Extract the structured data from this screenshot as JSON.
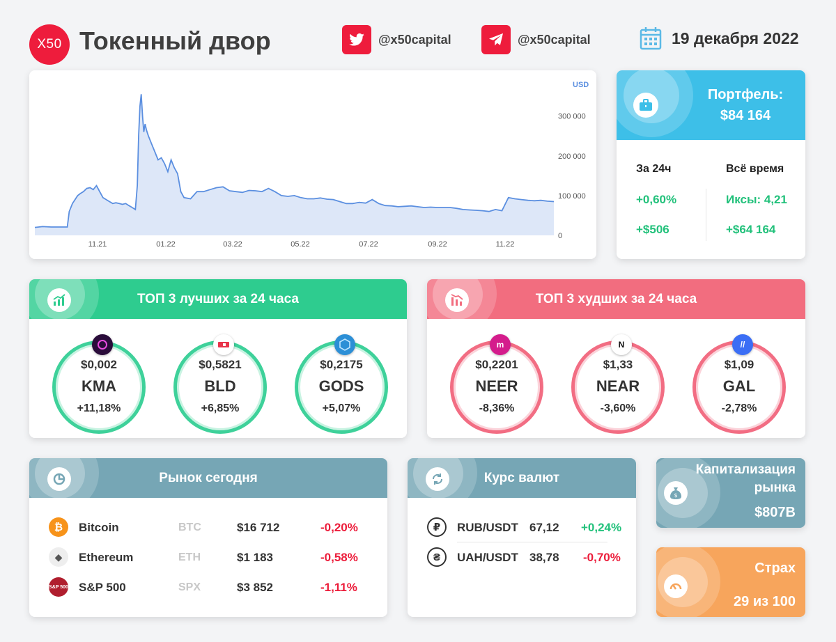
{
  "header": {
    "logo_text": "X50",
    "title": "Токенный двор",
    "twitter_handle": "@x50capital",
    "telegram_handle": "@x50capital",
    "date": "19 декабря 2022"
  },
  "chart_data": {
    "type": "area",
    "currency_label": "USD",
    "x_ticks": [
      "11.21",
      "01.22",
      "03.22",
      "05.22",
      "07.22",
      "09.22",
      "11.22"
    ],
    "y_ticks": [
      "300 000",
      "200 000",
      "100 000",
      "0"
    ],
    "ylim": [
      0,
      380000
    ],
    "x": [
      0,
      12,
      25,
      40,
      50,
      53,
      58,
      62,
      66,
      70,
      75,
      80,
      85,
      90,
      95,
      100,
      105,
      110,
      115,
      120,
      125,
      130,
      135,
      140,
      145,
      150,
      155,
      158,
      160,
      162,
      164,
      166,
      168,
      170,
      172,
      175,
      180,
      185,
      190,
      195,
      200,
      205,
      210,
      215,
      220,
      225,
      230,
      240,
      250,
      260,
      270,
      280,
      290,
      300,
      310,
      320,
      330,
      340,
      350,
      360,
      370,
      380,
      390,
      400,
      410,
      420,
      430,
      440,
      450,
      460,
      470,
      480,
      490,
      500,
      510,
      520,
      530,
      540,
      550,
      560,
      570,
      580,
      590,
      600,
      610,
      620,
      630,
      640,
      650,
      660,
      670,
      680,
      690,
      700,
      710,
      720,
      730,
      740,
      750,
      760,
      770,
      780,
      790,
      800
    ],
    "y": [
      20000,
      22000,
      21000,
      21000,
      21000,
      60000,
      80000,
      90000,
      100000,
      105000,
      110000,
      118000,
      120000,
      115000,
      125000,
      110000,
      95000,
      90000,
      85000,
      80000,
      82000,
      80000,
      78000,
      80000,
      75000,
      70000,
      65000,
      125000,
      250000,
      325000,
      355000,
      300000,
      260000,
      280000,
      265000,
      250000,
      230000,
      210000,
      190000,
      195000,
      180000,
      160000,
      190000,
      170000,
      155000,
      110000,
      95000,
      92000,
      110000,
      110000,
      115000,
      120000,
      122000,
      112000,
      110000,
      108000,
      113000,
      112000,
      110000,
      118000,
      110000,
      100000,
      98000,
      100000,
      95000,
      92000,
      92000,
      94000,
      91000,
      90000,
      85000,
      80000,
      80000,
      83000,
      81000,
      90000,
      80000,
      75000,
      74000,
      72000,
      73000,
      74000,
      72000,
      70000,
      71000,
      70000,
      70000,
      70000,
      68000,
      65000,
      64000,
      63000,
      62000,
      60000,
      65000,
      62000,
      95000,
      92000,
      90000,
      88000,
      87000,
      88000,
      86000,
      85000
    ],
    "grid": false,
    "line_color": "#5b8fe0",
    "fill_color": "#dde7f8"
  },
  "portfolio": {
    "title_line1": "Портфель:",
    "title_line2": "$84 164",
    "col1_header": "За 24ч",
    "col2_header": "Всё время",
    "col1_pct": "+0,60%",
    "col1_usd": "+$506",
    "col2_x": "Иксы: 4,21",
    "col2_usd": "+$64 164"
  },
  "top_best": {
    "title": "ТОП 3 лучших за 24 часа",
    "color": "#2ecc8f",
    "items": [
      {
        "price": "$0,002",
        "symbol": "KMA",
        "change": "+11,18%"
      },
      {
        "price": "$0,5821",
        "symbol": "BLD",
        "change": "+6,85%"
      },
      {
        "price": "$0,2175",
        "symbol": "GODS",
        "change": "+5,07%"
      }
    ]
  },
  "top_worst": {
    "title": "ТОП 3 худших за 24 часа",
    "color": "#f26d7f",
    "items": [
      {
        "price": "$0,2201",
        "symbol": "NEER",
        "change": "-8,36%"
      },
      {
        "price": "$1,33",
        "symbol": "NEAR",
        "change": "-3,60%"
      },
      {
        "price": "$1,09",
        "symbol": "GAL",
        "change": "-2,78%"
      }
    ]
  },
  "market": {
    "title": "Рынок сегодня",
    "rows": [
      {
        "name": "Bitcoin",
        "ticker": "BTC",
        "price": "$16 712",
        "change": "-0,20%",
        "icon": "bitcoin-icon",
        "icon_text": "₿"
      },
      {
        "name": "Ethereum",
        "ticker": "ETH",
        "price": "$1 183",
        "change": "-0,58%",
        "icon": "ethereum-icon",
        "icon_text": "◆"
      },
      {
        "name": "S&P 500",
        "ticker": "SPX",
        "price": "$3 852",
        "change": "-1,11%",
        "icon": "sp500-icon",
        "icon_text": "S&P 500"
      }
    ]
  },
  "currency": {
    "title": "Курс валют",
    "rows": [
      {
        "pair": "RUB/USDT",
        "rate": "67,12",
        "change": "+0,24%",
        "icon": "ruble-icon",
        "icon_text": "₽"
      },
      {
        "pair": "UAH/USDT",
        "rate": "38,78",
        "change": "-0,70%",
        "icon": "hryvnia-icon",
        "icon_text": "₴"
      }
    ]
  },
  "market_cap": {
    "title_line1": "Капитализация",
    "title_line2": "рынка",
    "value": "$807B",
    "color": "#76a6b5"
  },
  "fear": {
    "title": "Страх",
    "value": "29 из 100",
    "color": "#f7a55c"
  }
}
